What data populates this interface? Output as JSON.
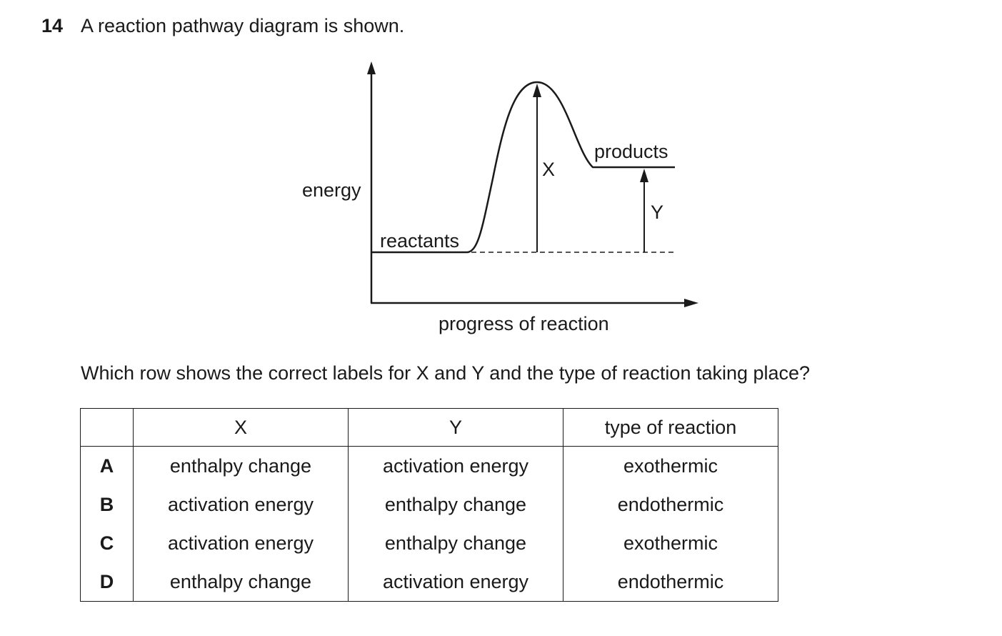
{
  "question": {
    "number": "14",
    "stem": "A reaction pathway diagram is shown.",
    "prompt": "Which row shows the correct labels for X and Y and the type of reaction taking place?"
  },
  "diagram": {
    "y_axis_label": "energy",
    "x_axis_label": "progress of reaction",
    "reactants_label": "reactants",
    "products_label": "products",
    "arrow_x_label": "X",
    "arrow_y_label": "Y"
  },
  "table": {
    "headers": [
      "",
      "X",
      "Y",
      "type of reaction"
    ],
    "rows": [
      {
        "letter": "A",
        "x": "enthalpy change",
        "y": "activation energy",
        "type": "exothermic"
      },
      {
        "letter": "B",
        "x": "activation energy",
        "y": "enthalpy change",
        "type": "endothermic"
      },
      {
        "letter": "C",
        "x": "activation energy",
        "y": "enthalpy change",
        "type": "exothermic"
      },
      {
        "letter": "D",
        "x": "enthalpy change",
        "y": "activation energy",
        "type": "endothermic"
      }
    ]
  }
}
